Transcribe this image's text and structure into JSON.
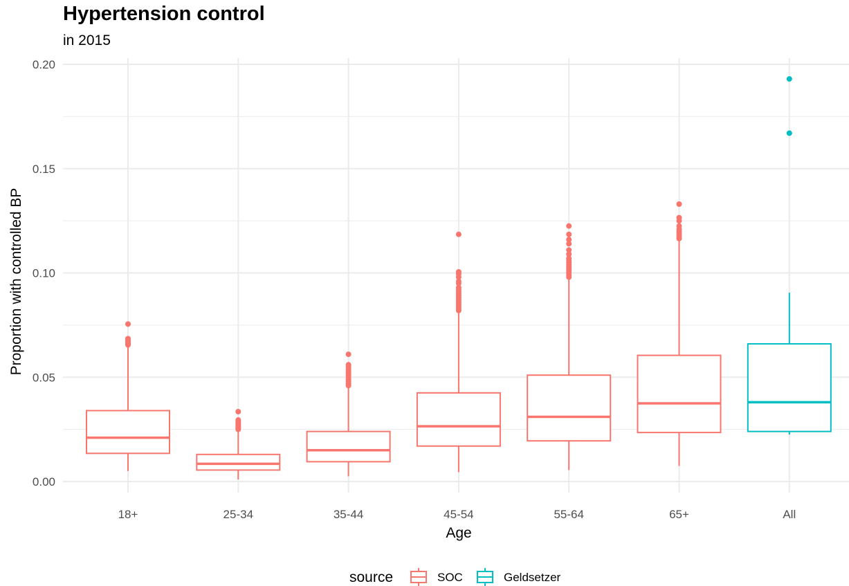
{
  "chart_data": {
    "type": "boxplot",
    "title": "Hypertension control",
    "subtitle": "in 2015",
    "xlabel": "Age",
    "ylabel": "Proportion with controlled BP",
    "ylim": [
      -0.008,
      0.2
    ],
    "yticks": [
      0.0,
      0.05,
      0.1,
      0.15,
      0.2
    ],
    "ytick_labels": [
      "0.00",
      "0.05",
      "0.10",
      "0.15",
      "0.20"
    ],
    "categories": [
      "18+",
      "25-34",
      "35-44",
      "45-54",
      "55-64",
      "65+",
      "All"
    ],
    "grid": true,
    "legend": {
      "title": "source",
      "position": "bottom",
      "entries": [
        {
          "name": "SOC",
          "color": "#F8766D"
        },
        {
          "name": "Geldsetzer",
          "color": "#00BFC4"
        }
      ]
    },
    "boxes": [
      {
        "category": "18+",
        "source": "SOC",
        "min": 0.005,
        "q1": 0.0135,
        "median": 0.021,
        "q3": 0.034,
        "max": 0.065,
        "outliers": [
          0.0655,
          0.066,
          0.0665,
          0.067,
          0.0675,
          0.068,
          0.0685,
          0.0755
        ]
      },
      {
        "category": "25-34",
        "source": "SOC",
        "min": 0.001,
        "q1": 0.0055,
        "median": 0.0085,
        "q3": 0.013,
        "max": 0.0245,
        "outliers": [
          0.025,
          0.0255,
          0.026,
          0.0265,
          0.027,
          0.0275,
          0.028,
          0.0285,
          0.029,
          0.0295,
          0.0335
        ]
      },
      {
        "category": "35-44",
        "source": "SOC",
        "min": 0.0025,
        "q1": 0.0095,
        "median": 0.015,
        "q3": 0.024,
        "max": 0.0455,
        "outliers": [
          0.046,
          0.047,
          0.048,
          0.049,
          0.05,
          0.051,
          0.052,
          0.053,
          0.054,
          0.055,
          0.056,
          0.061
        ]
      },
      {
        "category": "45-54",
        "source": "SOC",
        "min": 0.0045,
        "q1": 0.017,
        "median": 0.0265,
        "q3": 0.0425,
        "max": 0.081,
        "outliers": [
          0.082,
          0.083,
          0.084,
          0.085,
          0.086,
          0.087,
          0.088,
          0.089,
          0.09,
          0.091,
          0.092,
          0.093,
          0.095,
          0.096,
          0.098,
          0.0995,
          0.1005,
          0.1185
        ]
      },
      {
        "category": "55-64",
        "source": "SOC",
        "min": 0.0055,
        "q1": 0.0195,
        "median": 0.031,
        "q3": 0.051,
        "max": 0.0975,
        "outliers": [
          0.098,
          0.099,
          0.1,
          0.101,
          0.102,
          0.103,
          0.104,
          0.105,
          0.106,
          0.107,
          0.109,
          0.111,
          0.114,
          0.116,
          0.1185,
          0.1225
        ]
      },
      {
        "category": "65+",
        "source": "SOC",
        "min": 0.0075,
        "q1": 0.0235,
        "median": 0.0375,
        "q3": 0.0605,
        "max": 0.116,
        "outliers": [
          0.1165,
          0.117,
          0.118,
          0.119,
          0.12,
          0.121,
          0.1225,
          0.125,
          0.1265,
          0.133
        ]
      },
      {
        "category": "All",
        "source": "Geldsetzer",
        "min": 0.0225,
        "q1": 0.024,
        "median": 0.038,
        "q3": 0.066,
        "max": 0.0905,
        "outliers": [
          0.167,
          0.193
        ]
      }
    ]
  }
}
